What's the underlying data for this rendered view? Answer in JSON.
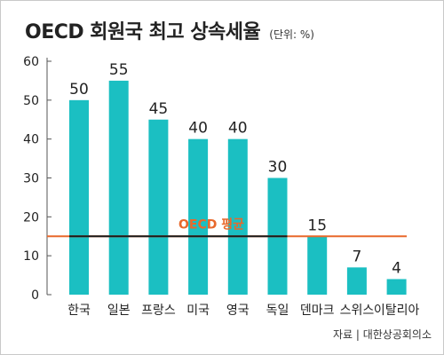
{
  "title": "OECD 회원국 최고 상속세율",
  "unit": "(단위: %)",
  "source": "자료 | 대한상공회의소",
  "colors": {
    "bar": "#1bbfc2",
    "avg_line": "#e8692c",
    "avg_label": "#e8692c",
    "avg_inner": "#1a1a1a",
    "axis": "#555555",
    "text": "#222222"
  },
  "chart_data": {
    "type": "bar",
    "categories": [
      "한국",
      "일본",
      "프랑스",
      "미국",
      "영국",
      "독일",
      "덴마크",
      "스위스",
      "이탈리아"
    ],
    "values": [
      50,
      55,
      45,
      40,
      40,
      30,
      15,
      7,
      4
    ],
    "ylim": [
      0,
      60
    ],
    "yticks": [
      0,
      10,
      20,
      30,
      40,
      50,
      60
    ],
    "reference_line": {
      "label": "OECD 평균",
      "value": 15
    },
    "title": "OECD 회원국 최고 상속세율",
    "xlabel": "",
    "ylabel": "",
    "grid": false,
    "data_labels": true
  }
}
